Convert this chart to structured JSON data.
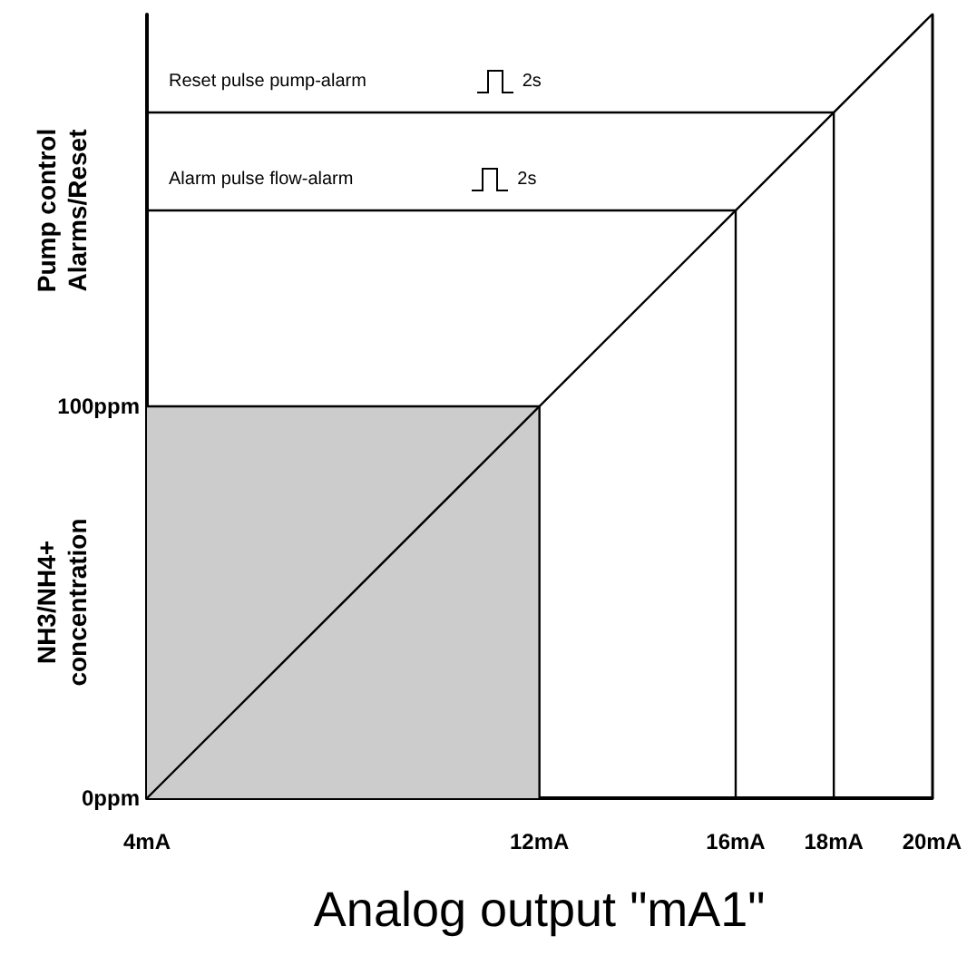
{
  "chart_data": {
    "type": "line",
    "xlabel": "Analog output \"mA1\"",
    "ylabel": "NH3/NH4+\nconcentration",
    "xlim": [
      4,
      20
    ],
    "xticks": [
      {
        "value": 4,
        "label": "4mA"
      },
      {
        "value": 12,
        "label": "12mA"
      },
      {
        "value": 16,
        "label": "16mA"
      },
      {
        "value": 18,
        "label": "18mA"
      },
      {
        "value": 20,
        "label": "20mA"
      }
    ],
    "ylim": [
      0,
      200
    ],
    "yticks": [
      {
        "value": 0,
        "label": "0ppm"
      },
      {
        "value": 100,
        "label": "100ppm"
      }
    ],
    "series": [
      {
        "type": "area",
        "color": "#cccccc",
        "x": [
          4,
          12,
          12
        ],
        "values": [
          100,
          100,
          0
        ]
      },
      {
        "color": "#000000",
        "x": [
          4,
          20
        ],
        "values": [
          0,
          200
        ]
      },
      {
        "color": "#000000",
        "x": [
          4,
          16,
          16
        ],
        "values": [
          150,
          150,
          0
        ]
      },
      {
        "color": "#000000",
        "x": [
          4,
          18,
          18
        ],
        "values": [
          175,
          175,
          0
        ]
      }
    ],
    "annotations": [
      {
        "text": "Reset pulse pump-alarm",
        "x": 4,
        "y": 175
      },
      {
        "text": "2s",
        "x": 11.65,
        "y": 175
      },
      {
        "text": "Alarm pulse flow-alarm",
        "x": 4,
        "y": 150
      },
      {
        "text": "2s",
        "x": 11.55,
        "y": 150
      },
      "Pump control\nAlarms/Reset"
    ],
    "marker": "none",
    "grid": false
  }
}
